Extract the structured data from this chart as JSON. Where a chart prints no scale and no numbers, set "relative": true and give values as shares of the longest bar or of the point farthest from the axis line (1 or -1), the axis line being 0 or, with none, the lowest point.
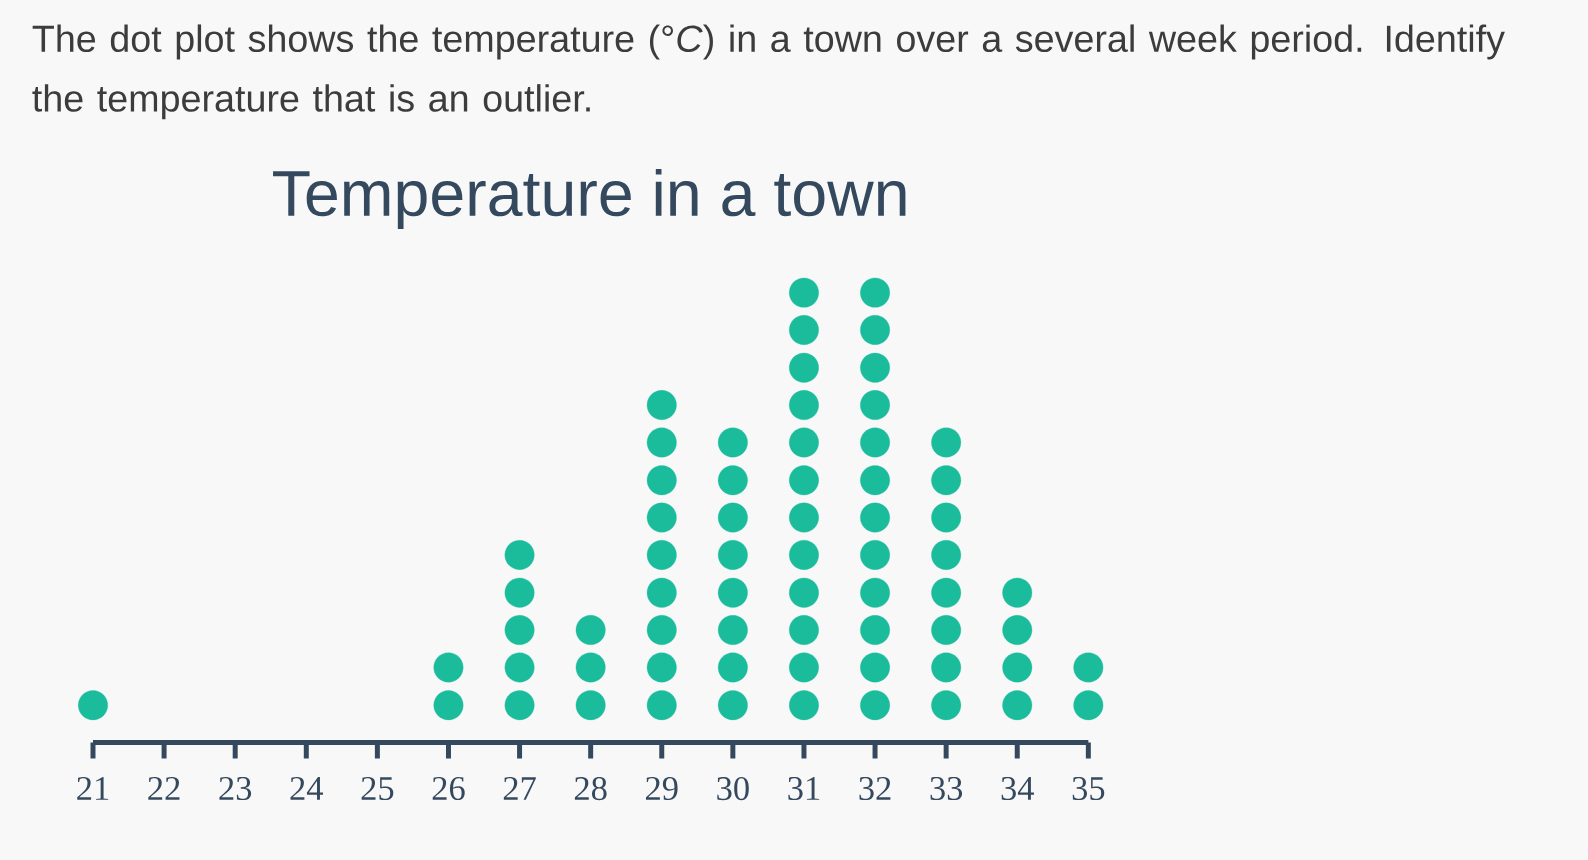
{
  "chart_data": {
    "type": "scatter",
    "title": "Temperature in a town",
    "annotations": [
      "The dot plot shows the temperature (°*C*) in a town over a several week period. Identify the temperature that is an outlier."
    ],
    "x": [
      21,
      26,
      26,
      27,
      27,
      27,
      27,
      27,
      28,
      28,
      28,
      29,
      29,
      29,
      29,
      29,
      29,
      29,
      29,
      29,
      30,
      30,
      30,
      30,
      30,
      30,
      30,
      30,
      31,
      31,
      31,
      31,
      31,
      31,
      31,
      31,
      31,
      31,
      31,
      31,
      32,
      32,
      32,
      32,
      32,
      32,
      32,
      32,
      32,
      32,
      32,
      32,
      33,
      33,
      33,
      33,
      33,
      33,
      33,
      33,
      34,
      34,
      34,
      34,
      35,
      35
    ],
    "values": [
      0.083,
      0.083,
      0.167,
      0.083,
      0.167,
      0.25,
      0.333,
      0.417,
      0.083,
      0.167,
      0.25,
      0.083,
      0.167,
      0.25,
      0.333,
      0.417,
      0.5,
      0.583,
      0.667,
      0.75,
      0.083,
      0.167,
      0.25,
      0.333,
      0.417,
      0.5,
      0.583,
      0.667,
      0.083,
      0.167,
      0.25,
      0.333,
      0.417,
      0.5,
      0.583,
      0.667,
      0.75,
      0.833,
      0.917,
      1,
      0.083,
      0.167,
      0.25,
      0.333,
      0.417,
      0.5,
      0.583,
      0.667,
      0.75,
      0.833,
      0.917,
      1,
      0.083,
      0.167,
      0.25,
      0.333,
      0.417,
      0.5,
      0.583,
      0.667,
      0.083,
      0.167,
      0.25,
      0.333,
      0.083,
      0.167
    ],
    "relative": true,
    "color": "#1abc9c",
    "marker": "circle",
    "xlim": [
      21,
      35
    ],
    "xticks": [
      21,
      22,
      23,
      24,
      25,
      26,
      27,
      28,
      29,
      30,
      31,
      32,
      33,
      34,
      35
    ],
    "tick_labels": "x"
  }
}
